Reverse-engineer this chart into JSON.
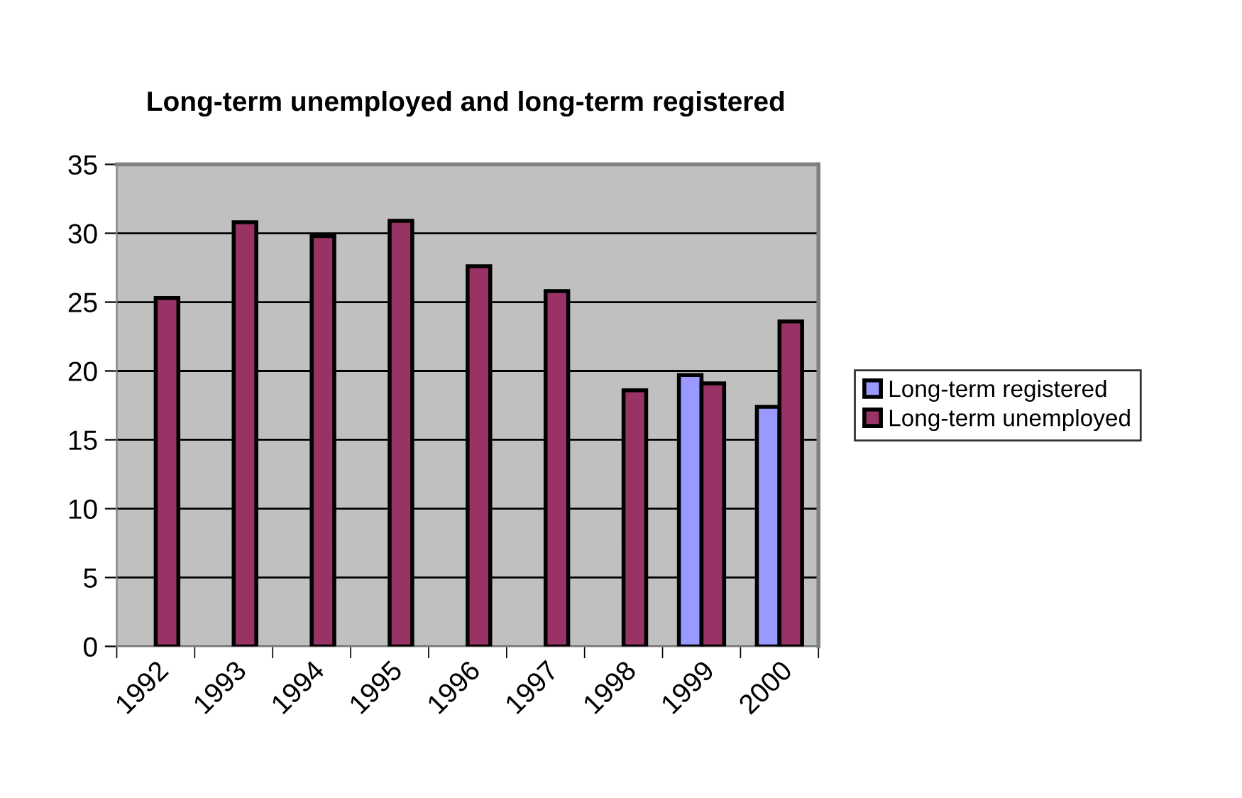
{
  "chart_data": {
    "type": "bar",
    "title": "Long-term unemployed and long-term registered",
    "categories": [
      "1992",
      "1993",
      "1994",
      "1995",
      "1996",
      "1997",
      "1998",
      "1999",
      "2000"
    ],
    "series": [
      {
        "name": "Long-term registered",
        "color": "#9999ff",
        "values": [
          null,
          null,
          null,
          null,
          null,
          null,
          null,
          19.7,
          17.4
        ]
      },
      {
        "name": "Long-term unemployed",
        "color": "#993366",
        "values": [
          25.3,
          30.8,
          29.8,
          30.9,
          27.6,
          25.8,
          18.6,
          19.1,
          23.6
        ]
      }
    ],
    "ylim": [
      0,
      35
    ],
    "yticks": [
      0,
      5,
      10,
      15,
      20,
      25,
      30,
      35
    ],
    "grid": "y",
    "legend": "right"
  }
}
